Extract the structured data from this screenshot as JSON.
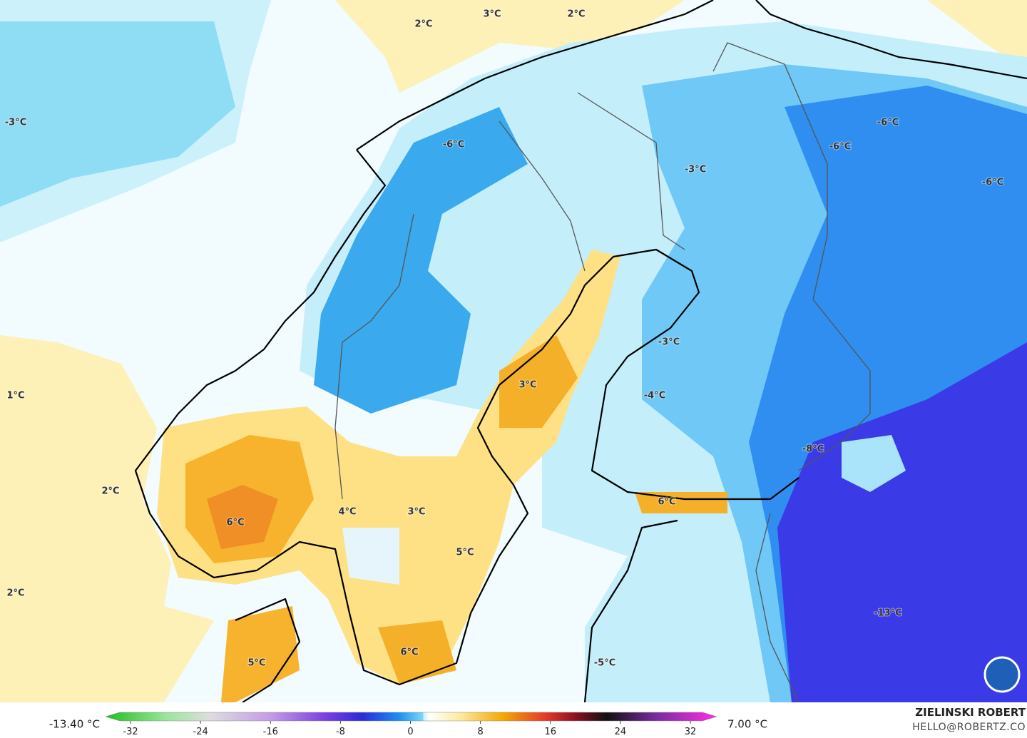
{
  "map": {
    "labels": [
      "2°C",
      "3°C",
      "2°C",
      "-3°C",
      "-6°C",
      "-6°C",
      "-3°C",
      "-6°C",
      "-6°C",
      "1°C",
      "2°C",
      "2°C",
      "3°C",
      "-3°C",
      "-4°C",
      "-8°C",
      "6°C",
      "6°C",
      "4°C",
      "3°C",
      "5°C",
      "-13°C",
      "5°C",
      "6°C",
      "-5°C"
    ]
  },
  "colorbar": {
    "min_label": "-13.40 °C",
    "max_label": "7.00 °C",
    "lim": [
      -32,
      32
    ],
    "ticks": [
      -32,
      -24,
      -16,
      -8,
      0,
      8,
      16,
      24,
      32
    ]
  },
  "credit": {
    "name": "ZIELINSKI ROBERT",
    "email": "HELLO@ROBERTZ.CO"
  }
}
